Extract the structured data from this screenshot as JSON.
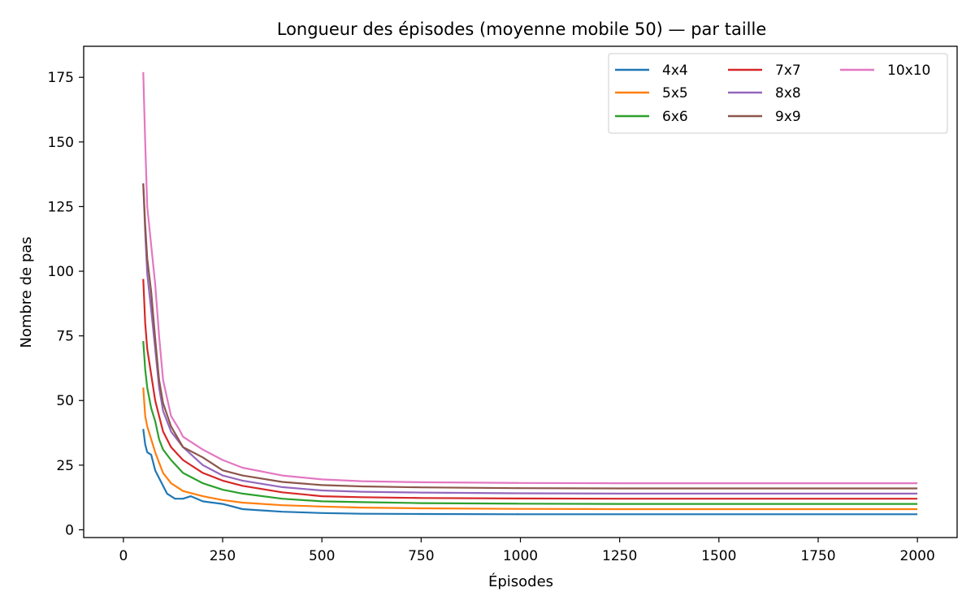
{
  "chart_data": {
    "type": "line",
    "title": "Longueur des épisodes (moyenne mobile 50) — par taille",
    "xlabel": "Épisodes",
    "ylabel": "Nombre de pas",
    "xlim": [
      -100,
      2100
    ],
    "ylim": [
      -3,
      187
    ],
    "xticks": [
      0,
      250,
      500,
      750,
      1000,
      1250,
      1500,
      1750,
      2000
    ],
    "yticks": [
      0,
      25,
      50,
      75,
      100,
      125,
      150,
      175
    ],
    "grid": false,
    "legend": {
      "placement": "top-right",
      "columns": 3
    },
    "series": [
      {
        "name": "4x4",
        "color": "#1f77b4",
        "points": [
          [
            50,
            39
          ],
          [
            55,
            33
          ],
          [
            60,
            30
          ],
          [
            70,
            29
          ],
          [
            80,
            23
          ],
          [
            90,
            20
          ],
          [
            100,
            17
          ],
          [
            110,
            14
          ],
          [
            120,
            13
          ],
          [
            130,
            12
          ],
          [
            150,
            12
          ],
          [
            170,
            13
          ],
          [
            200,
            11
          ],
          [
            250,
            10
          ],
          [
            300,
            8
          ],
          [
            350,
            7.5
          ],
          [
            400,
            7
          ],
          [
            500,
            6.5
          ],
          [
            600,
            6.2
          ],
          [
            750,
            6.1
          ],
          [
            1000,
            6
          ],
          [
            1250,
            6
          ],
          [
            1500,
            6
          ],
          [
            1750,
            6
          ],
          [
            2000,
            6
          ]
        ]
      },
      {
        "name": "5x5",
        "color": "#ff7f0e",
        "points": [
          [
            50,
            55
          ],
          [
            55,
            44
          ],
          [
            60,
            40
          ],
          [
            70,
            35
          ],
          [
            80,
            30
          ],
          [
            90,
            26
          ],
          [
            100,
            22
          ],
          [
            120,
            18
          ],
          [
            150,
            15
          ],
          [
            200,
            13
          ],
          [
            250,
            11.5
          ],
          [
            300,
            10.5
          ],
          [
            400,
            9.5
          ],
          [
            500,
            9
          ],
          [
            600,
            8.6
          ],
          [
            750,
            8.3
          ],
          [
            1000,
            8.1
          ],
          [
            1250,
            8
          ],
          [
            1500,
            8
          ],
          [
            1750,
            8
          ],
          [
            2000,
            8
          ]
        ]
      },
      {
        "name": "6x6",
        "color": "#2ca02c",
        "points": [
          [
            50,
            73
          ],
          [
            55,
            62
          ],
          [
            60,
            55
          ],
          [
            70,
            47
          ],
          [
            80,
            42
          ],
          [
            90,
            35
          ],
          [
            100,
            31
          ],
          [
            120,
            27
          ],
          [
            150,
            22
          ],
          [
            200,
            18
          ],
          [
            250,
            15.5
          ],
          [
            300,
            14
          ],
          [
            400,
            12
          ],
          [
            500,
            11
          ],
          [
            600,
            10.7
          ],
          [
            750,
            10.3
          ],
          [
            1000,
            10.1
          ],
          [
            1250,
            10
          ],
          [
            1500,
            10
          ],
          [
            1750,
            10
          ],
          [
            2000,
            10
          ]
        ]
      },
      {
        "name": "7x7",
        "color": "#d62728",
        "points": [
          [
            50,
            97
          ],
          [
            55,
            80
          ],
          [
            60,
            70
          ],
          [
            70,
            60
          ],
          [
            80,
            50
          ],
          [
            90,
            44
          ],
          [
            100,
            38
          ],
          [
            120,
            32
          ],
          [
            150,
            27
          ],
          [
            200,
            22
          ],
          [
            250,
            19
          ],
          [
            300,
            17
          ],
          [
            400,
            14.5
          ],
          [
            500,
            13
          ],
          [
            600,
            12.6
          ],
          [
            750,
            12.3
          ],
          [
            1000,
            12.1
          ],
          [
            1250,
            12
          ],
          [
            1500,
            12
          ],
          [
            1750,
            12
          ],
          [
            2000,
            12
          ]
        ]
      },
      {
        "name": "8x8",
        "color": "#9467bd",
        "points": [
          [
            50,
            134
          ],
          [
            55,
            115
          ],
          [
            60,
            99
          ],
          [
            70,
            85
          ],
          [
            80,
            70
          ],
          [
            90,
            55
          ],
          [
            100,
            46
          ],
          [
            120,
            38
          ],
          [
            150,
            32
          ],
          [
            200,
            25
          ],
          [
            250,
            21
          ],
          [
            300,
            19
          ],
          [
            400,
            16.5
          ],
          [
            500,
            15.2
          ],
          [
            600,
            14.7
          ],
          [
            750,
            14.4
          ],
          [
            1000,
            14.1
          ],
          [
            1250,
            14
          ],
          [
            1500,
            14
          ],
          [
            1750,
            14
          ],
          [
            2000,
            14
          ]
        ]
      },
      {
        "name": "9x9",
        "color": "#8c564b",
        "points": [
          [
            50,
            134
          ],
          [
            55,
            118
          ],
          [
            60,
            105
          ],
          [
            70,
            92
          ],
          [
            80,
            74
          ],
          [
            90,
            58
          ],
          [
            100,
            49
          ],
          [
            120,
            40
          ],
          [
            150,
            32
          ],
          [
            200,
            28
          ],
          [
            250,
            23
          ],
          [
            300,
            21
          ],
          [
            400,
            18.5
          ],
          [
            500,
            17.3
          ],
          [
            600,
            16.8
          ],
          [
            750,
            16.4
          ],
          [
            1000,
            16.1
          ],
          [
            1250,
            16
          ],
          [
            1500,
            16
          ],
          [
            1750,
            16
          ],
          [
            2000,
            16
          ]
        ]
      },
      {
        "name": "10x10",
        "color": "#e377c2",
        "points": [
          [
            50,
            177
          ],
          [
            55,
            150
          ],
          [
            60,
            125
          ],
          [
            70,
            110
          ],
          [
            80,
            95
          ],
          [
            90,
            75
          ],
          [
            100,
            58
          ],
          [
            120,
            44
          ],
          [
            140,
            39
          ],
          [
            150,
            36
          ],
          [
            200,
            31
          ],
          [
            250,
            27
          ],
          [
            300,
            24
          ],
          [
            400,
            21
          ],
          [
            500,
            19.5
          ],
          [
            600,
            18.8
          ],
          [
            750,
            18.4
          ],
          [
            1000,
            18.1
          ],
          [
            1250,
            18
          ],
          [
            1500,
            18
          ],
          [
            1750,
            18
          ],
          [
            2000,
            18
          ]
        ]
      }
    ]
  }
}
